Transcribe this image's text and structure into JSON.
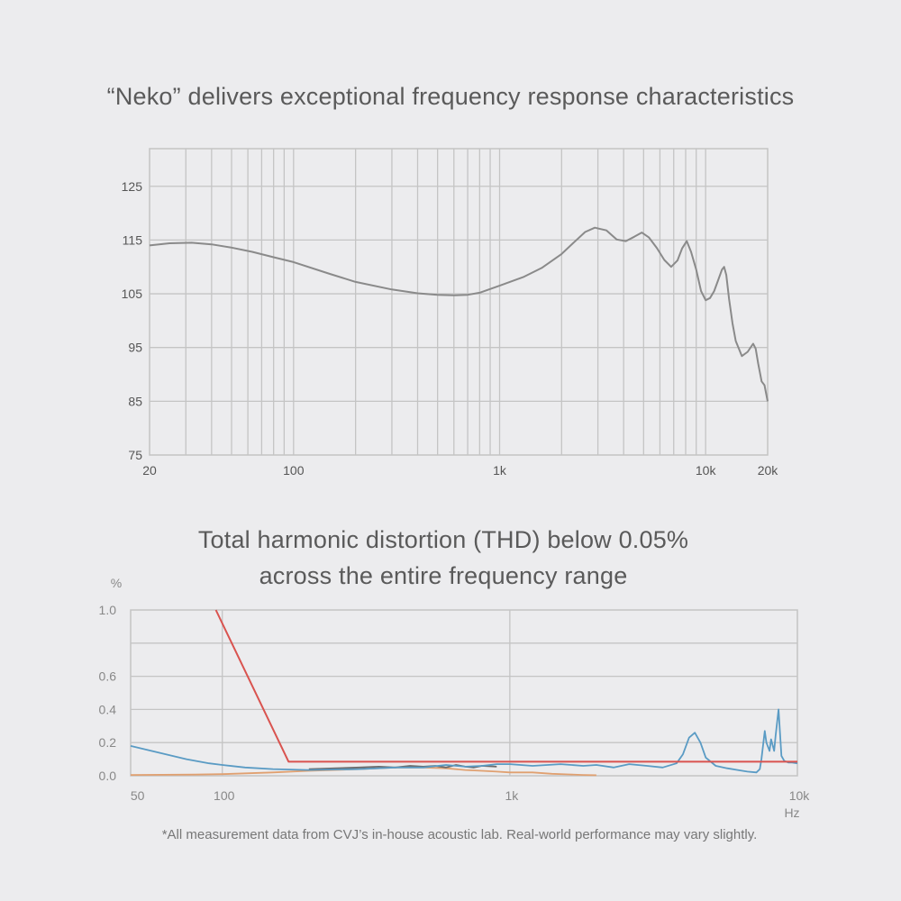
{
  "colors": {
    "background": "#ececee",
    "grid": "#c4c4c4",
    "fr_line": "#8a8a8a",
    "thd_limit": "#d9534f",
    "thd_series1": "#5a9bc4",
    "thd_series2": "#e0a070",
    "thd_series3": "#6a6a6a"
  },
  "chart_data": [
    {
      "type": "line",
      "title": "“Neko” delivers exceptional frequency response characteristics",
      "xscale": "log",
      "xlim": [
        20,
        20000
      ],
      "ylim": [
        75,
        132
      ],
      "xticks": [
        {
          "v": 20,
          "label": "20"
        },
        {
          "v": 100,
          "label": "100"
        },
        {
          "v": 1000,
          "label": "1k"
        },
        {
          "v": 10000,
          "label": "10k"
        },
        {
          "v": 20000,
          "label": "20k"
        }
      ],
      "yticks": [
        {
          "v": 75,
          "label": "75"
        },
        {
          "v": 85,
          "label": "85"
        },
        {
          "v": 95,
          "label": "95"
        },
        {
          "v": 105,
          "label": "105"
        },
        {
          "v": 115,
          "label": "115"
        },
        {
          "v": 125,
          "label": "125"
        }
      ],
      "grid": true,
      "series": [
        {
          "x": [
            20,
            25,
            32,
            40,
            50,
            63,
            80,
            100,
            150,
            200,
            300,
            400,
            500,
            600,
            700,
            800,
            1000,
            1300,
            1600,
            2000,
            2300,
            2600,
            2900,
            3300,
            3700,
            4100,
            4500,
            4900,
            5300,
            5800,
            6300,
            6800,
            7300,
            7700,
            8100,
            8500,
            9000,
            9500,
            10000,
            10500,
            11000,
            11500,
            12000,
            12300,
            12600,
            13000,
            13500,
            14000,
            15000,
            16000,
            17000,
            17500,
            18000,
            18700,
            19300,
            20000
          ],
          "y": [
            114,
            114.4,
            114.5,
            114.2,
            113.6,
            112.8,
            111.8,
            110.9,
            108.7,
            107.2,
            105.8,
            105.1,
            104.8,
            104.7,
            104.8,
            105.2,
            106.5,
            108.1,
            109.8,
            112.4,
            114.6,
            116.5,
            117.3,
            116.8,
            115.1,
            114.8,
            115.6,
            116.4,
            115.5,
            113.5,
            111.3,
            110.0,
            111.2,
            113.5,
            114.8,
            112.8,
            109.5,
            105.5,
            103.8,
            104.2,
            105.5,
            107.5,
            109.5,
            110.0,
            108.5,
            104.0,
            99.5,
            96.2,
            93.4,
            94.2,
            95.7,
            94.8,
            92.0,
            88.7,
            88.0,
            85.0
          ]
        }
      ]
    },
    {
      "type": "line",
      "title": "Total harmonic distortion (THD) below 0.05% across the entire frequency range",
      "title_lines": [
        "Total harmonic distortion (THD) below 0.05%",
        "across the entire frequency range"
      ],
      "xscale": "log",
      "xlim": [
        48,
        10000
      ],
      "ylim": [
        0,
        1.0
      ],
      "xlabel": "Hz",
      "ylabel": "%",
      "xticks": [
        {
          "v": 50,
          "label": "50"
        },
        {
          "v": 100,
          "label": "100"
        },
        {
          "v": 1000,
          "label": "1k"
        },
        {
          "v": 10000,
          "label": "10k"
        }
      ],
      "yticks": [
        {
          "v": 0.0,
          "label": "0.0"
        },
        {
          "v": 0.2,
          "label": "0.2"
        },
        {
          "v": 0.4,
          "label": "0.4"
        },
        {
          "v": 0.6,
          "label": "0.6"
        },
        {
          "v": 1.0,
          "label": "1.0"
        }
      ],
      "grid": true,
      "series": [
        {
          "role": "limit",
          "x": [
            95,
            170,
            10000
          ],
          "y": [
            1.0,
            0.085,
            0.085
          ]
        },
        {
          "role": "blue",
          "x": [
            48,
            60,
            75,
            90,
            100,
            120,
            150,
            200,
            300,
            400,
            500,
            600,
            700,
            800,
            900,
            1000,
            1200,
            1500,
            1800,
            2000,
            2300,
            2600,
            3000,
            3400,
            3800,
            4000,
            4200,
            4400,
            4600,
            4800,
            5200,
            5700,
            6200,
            6700,
            7200,
            7400,
            7500,
            7700,
            7800,
            8000,
            8100,
            8300,
            8400,
            8600,
            8800,
            9000,
            9300,
            9600,
            10000
          ],
          "y": [
            0.18,
            0.14,
            0.1,
            0.075,
            0.065,
            0.05,
            0.04,
            0.035,
            0.04,
            0.05,
            0.05,
            0.065,
            0.055,
            0.06,
            0.07,
            0.07,
            0.06,
            0.07,
            0.06,
            0.065,
            0.05,
            0.07,
            0.06,
            0.05,
            0.075,
            0.13,
            0.23,
            0.26,
            0.2,
            0.11,
            0.06,
            0.045,
            0.035,
            0.025,
            0.02,
            0.04,
            0.1,
            0.27,
            0.2,
            0.15,
            0.22,
            0.15,
            0.24,
            0.4,
            0.12,
            0.09,
            0.08,
            0.08,
            0.075
          ]
        },
        {
          "role": "orange",
          "x": [
            48,
            80,
            100,
            150,
            200,
            300,
            400,
            500,
            600,
            700,
            800,
            900,
            1000,
            1200,
            1400,
            1600,
            1800,
            2000
          ],
          "y": [
            0.005,
            0.007,
            0.01,
            0.02,
            0.03,
            0.04,
            0.05,
            0.05,
            0.045,
            0.035,
            0.03,
            0.025,
            0.02,
            0.02,
            0.012,
            0.008,
            0.005,
            0.003
          ]
        },
        {
          "role": "dark",
          "x": [
            200,
            250,
            300,
            350,
            400,
            450,
            500,
            550,
            600,
            650,
            700,
            750,
            800,
            900
          ],
          "y": [
            0.04,
            0.045,
            0.05,
            0.055,
            0.05,
            0.06,
            0.055,
            0.06,
            0.05,
            0.065,
            0.055,
            0.05,
            0.06,
            0.055
          ]
        }
      ]
    }
  ],
  "footnote": "*All measurement data from CVJ’s in-house acoustic lab. Real-world performance may vary slightly."
}
